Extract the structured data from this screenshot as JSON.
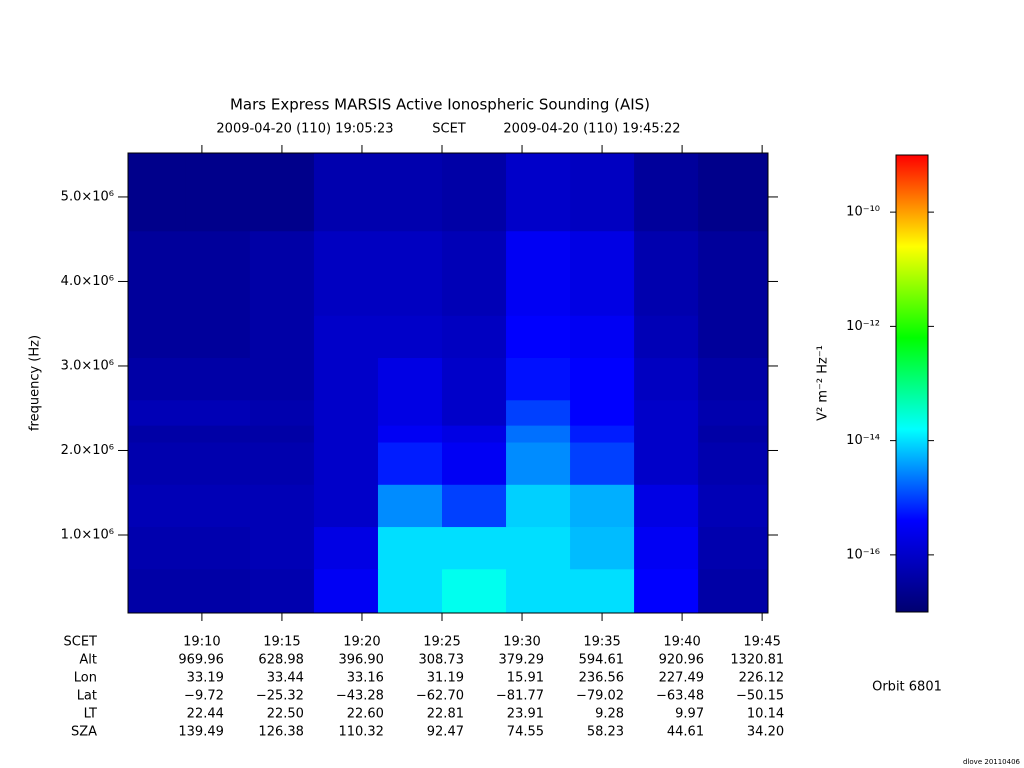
{
  "chart_data": {
    "type": "spectrogram",
    "title": "Mars Express MARSIS Active Ionospheric Sounding (AIS)",
    "start_label": "2009-04-20 (110) 19:05:23",
    "time_system": "SCET",
    "end_label": "2009-04-20 (110) 19:45:22",
    "y_label": "frequency (Hz)",
    "colorbar_label": "V² m⁻² Hz⁻¹",
    "xlim": [
      "19:05:23",
      "19:45:22"
    ],
    "xticks": [
      "19:10",
      "19:15",
      "19:20",
      "19:25",
      "19:30",
      "19:35",
      "19:40",
      "19:45"
    ],
    "ylim": [
      77000,
      5520000
    ],
    "yticks": [
      {
        "value": 1000000,
        "label": "1.0×10⁶"
      },
      {
        "value": 2000000,
        "label": "2.0×10⁶"
      },
      {
        "value": 3000000,
        "label": "3.0×10⁶"
      },
      {
        "value": 4000000,
        "label": "4.0×10⁶"
      },
      {
        "value": 5000000,
        "label": "5.0×10⁶"
      }
    ],
    "zlim": [
      1e-17,
      1e-09
    ],
    "zticks": [
      {
        "value": 1e-10,
        "label": "10⁻¹⁰"
      },
      {
        "value": 1e-12,
        "label": "10⁻¹²"
      },
      {
        "value": 1e-14,
        "label": "10⁻¹⁴"
      },
      {
        "value": 1e-16,
        "label": "10⁻¹⁶"
      }
    ],
    "z_log": true,
    "colormap": [
      "#000070",
      "#0000ff",
      "#00ffff",
      "#00ff00",
      "#ffff00",
      "#ff0000"
    ],
    "time_bins": [
      "19:05:23",
      "19:09",
      "19:13",
      "19:17",
      "19:21",
      "19:25",
      "19:29",
      "19:33",
      "19:37",
      "19:41",
      "19:45:22"
    ],
    "freq_bins": [
      77000,
      600000,
      1100000,
      1600000,
      2100000,
      2300000,
      2600000,
      3100000,
      3600000,
      4600000,
      5520000
    ],
    "values": [
      [
        4e-17,
        4e-17,
        5e-17,
        3e-16,
        1e-14,
        2e-14,
        1e-14,
        1e-14,
        4e-16,
        4e-17
      ],
      [
        5e-17,
        5e-17,
        6e-17,
        2e-16,
        1e-14,
        1e-14,
        1e-14,
        6e-15,
        3e-16,
        5e-17
      ],
      [
        6e-17,
        6e-17,
        6e-17,
        1e-16,
        3e-15,
        1e-15,
        8e-15,
        5e-15,
        2e-16,
        6e-17
      ],
      [
        5e-17,
        5e-17,
        5e-17,
        1e-16,
        6e-16,
        3e-16,
        3e-15,
        1e-15,
        1e-16,
        5e-17
      ],
      [
        4e-17,
        4e-17,
        4e-17,
        1e-16,
        3e-16,
        2e-16,
        2e-15,
        6e-16,
        1e-16,
        4e-17
      ],
      [
        6e-17,
        6e-17,
        5e-17,
        1e-16,
        2e-16,
        1e-16,
        1e-15,
        4e-16,
        1e-16,
        5e-17
      ],
      [
        4e-17,
        4e-17,
        4e-17,
        1e-16,
        2e-16,
        1e-16,
        5e-16,
        4e-16,
        8e-17,
        4e-17
      ],
      [
        3e-17,
        3e-17,
        4e-17,
        1e-16,
        1e-16,
        8e-17,
        4e-16,
        3e-16,
        6e-17,
        3e-17
      ],
      [
        3e-17,
        3e-17,
        4e-17,
        8e-17,
        8e-17,
        6e-17,
        3e-16,
        2e-16,
        5e-17,
        3e-17
      ],
      [
        2e-17,
        2e-17,
        2e-17,
        5e-17,
        5e-17,
        4e-17,
        1e-16,
        8e-17,
        3e-17,
        2e-17
      ]
    ],
    "ephemeris": {
      "time_label": "SCET",
      "rows": [
        {
          "label": "Alt",
          "values": [
            "969.96",
            "628.98",
            "396.90",
            "308.73",
            "379.29",
            "594.61",
            "920.96",
            "1320.81"
          ]
        },
        {
          "label": "Lon",
          "values": [
            "33.19",
            "33.44",
            "33.16",
            "31.19",
            "15.91",
            "236.56",
            "227.49",
            "226.12"
          ]
        },
        {
          "label": "Lat",
          "values": [
            "−9.72",
            "−25.32",
            "−43.28",
            "−62.70",
            "−81.77",
            "−79.02",
            "−63.48",
            "−50.15"
          ]
        },
        {
          "label": "LT",
          "values": [
            "22.44",
            "22.50",
            "22.60",
            "22.81",
            "23.91",
            "9.28",
            "9.97",
            "10.14"
          ]
        },
        {
          "label": "SZA",
          "values": [
            "139.49",
            "126.38",
            "110.32",
            "92.47",
            "74.55",
            "58.23",
            "44.61",
            "34.20"
          ]
        }
      ]
    },
    "orbit": "Orbit 6801",
    "footer": "dlove 20110406"
  }
}
